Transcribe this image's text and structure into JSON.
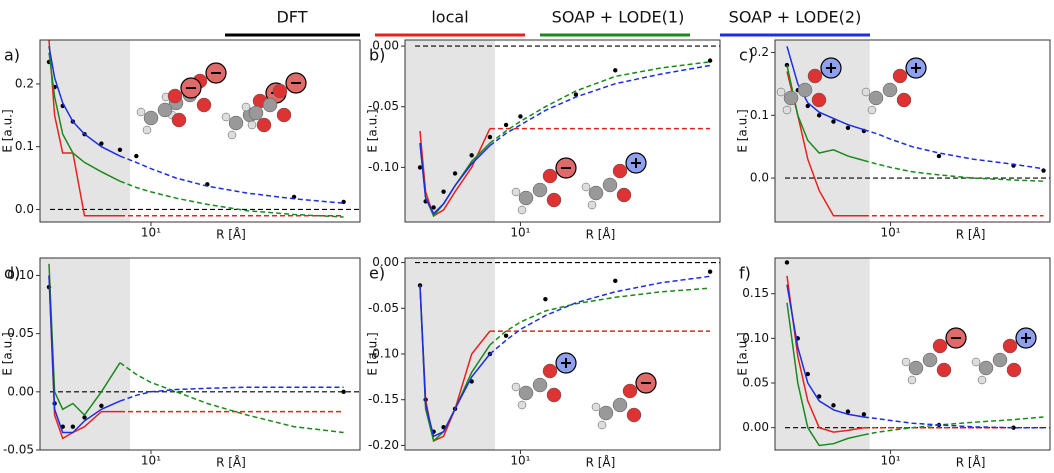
{
  "legend": [
    {
      "name": "DFT",
      "color": "#000000"
    },
    {
      "name": "local",
      "color": "#e8211c"
    },
    {
      "name": "SOAP + LODE(1)",
      "color": "#1a8a1a"
    },
    {
      "name": "SOAP + LODE(2)",
      "color": "#1c2ee0"
    }
  ],
  "chart_data": [
    {
      "type": "line",
      "label": "a)",
      "xlabel": "R [Å]",
      "ylabel": "E [a.u.]",
      "log_x": true,
      "xlim": [
        4.5,
        45
      ],
      "xticks": [
        {
          "value": 10,
          "label": "10¹"
        }
      ],
      "ylim": [
        -0.02,
        0.27
      ],
      "yticks": [
        {
          "value": 0,
          "label": "0.0"
        },
        0.1,
        0.2
      ],
      "shade": [
        4.5,
        8.6
      ],
      "reference_y": 0,
      "x": [
        4.8,
        5,
        5.3,
        5.7,
        6.2,
        7,
        8,
        9,
        10,
        12,
        15,
        20,
        28,
        40
      ],
      "series": [
        {
          "kind": "scatter",
          "color": "#000000",
          "values": [
            0.235,
            0.195,
            0.165,
            0.14,
            0.12,
            0.105,
            0.095,
            0.085,
            null,
            null,
            0.04,
            null,
            0.02,
            0.012
          ]
        },
        {
          "kind": "line",
          "color": "#e8211c",
          "values": [
            0.27,
            0.15,
            0.09,
            0.09,
            -0.01,
            -0.01,
            -0.01,
            -0.01,
            -0.01,
            -0.01,
            -0.01,
            -0.01,
            -0.01,
            -0.01
          ]
        },
        {
          "kind": "line",
          "color": "#1a8a1a",
          "values": [
            0.25,
            0.18,
            0.12,
            0.09,
            0.075,
            0.06,
            0.045,
            0.035,
            0.028,
            0.018,
            0.008,
            -0.002,
            -0.008,
            -0.012
          ]
        },
        {
          "kind": "line",
          "color": "#1c2ee0",
          "values": [
            0.26,
            0.21,
            0.17,
            0.14,
            0.12,
            0.1,
            0.085,
            0.075,
            0.065,
            0.05,
            0.037,
            0.026,
            0.017,
            0.01
          ]
        }
      ]
    },
    {
      "type": "line",
      "label": "b)",
      "xlabel": "R [Å]",
      "ylabel": "E [a.u.]",
      "log_x": true,
      "xlim": [
        4.3,
        43
      ],
      "xticks": [
        {
          "value": 10,
          "label": "10¹"
        }
      ],
      "ylim": [
        -0.145,
        0.005
      ],
      "yticks": [
        {
          "value": 0,
          "label": "0.00"
        },
        -0.05,
        {
          "value": -0.1,
          "label": "-0.10"
        }
      ],
      "shade": [
        4.3,
        8.3
      ],
      "reference_y": 0,
      "x": [
        4.8,
        5,
        5.3,
        5.7,
        6.2,
        7,
        8,
        9,
        10,
        12,
        15,
        20,
        28,
        40
      ],
      "series": [
        {
          "kind": "scatter",
          "color": "#000000",
          "values": [
            -0.1,
            -0.128,
            -0.133,
            -0.12,
            -0.105,
            -0.09,
            -0.075,
            -0.065,
            -0.058,
            null,
            -0.04,
            -0.02,
            null,
            -0.012
          ]
        },
        {
          "kind": "line",
          "color": "#e8211c",
          "values": [
            -0.07,
            -0.12,
            -0.14,
            -0.135,
            -0.12,
            -0.1,
            -0.068,
            -0.068,
            -0.068,
            -0.068,
            -0.068,
            -0.068,
            -0.068,
            -0.068
          ]
        },
        {
          "kind": "line",
          "color": "#1a8a1a",
          "values": [
            -0.08,
            -0.125,
            -0.14,
            -0.13,
            -0.115,
            -0.095,
            -0.08,
            -0.07,
            -0.062,
            -0.05,
            -0.037,
            -0.025,
            -0.018,
            -0.013
          ]
        },
        {
          "kind": "line",
          "color": "#1c2ee0",
          "values": [
            -0.08,
            -0.125,
            -0.138,
            -0.13,
            -0.115,
            -0.097,
            -0.082,
            -0.072,
            -0.065,
            -0.053,
            -0.042,
            -0.031,
            -0.023,
            -0.016
          ]
        }
      ]
    },
    {
      "type": "line",
      "label": "c)",
      "xlabel": "R [Å]",
      "ylabel": "E [a.u.]",
      "log_x": true,
      "xlim": [
        3.8,
        38
      ],
      "xticks": [
        {
          "value": 10,
          "label": "10¹"
        }
      ],
      "ylim": [
        -0.07,
        0.22
      ],
      "yticks": [
        {
          "value": 0,
          "label": "0.0"
        },
        0.1,
        0.2
      ],
      "shade": [
        3.8,
        8.4
      ],
      "reference_y": 0,
      "x": [
        4.2,
        4.6,
        5,
        5.5,
        6.2,
        7,
        8,
        9,
        10,
        12,
        15,
        20,
        28,
        36
      ],
      "series": [
        {
          "kind": "scatter",
          "color": "#000000",
          "values": [
            0.18,
            0.14,
            0.115,
            0.1,
            0.09,
            0.08,
            0.075,
            null,
            null,
            null,
            0.035,
            null,
            0.02,
            0.012
          ]
        },
        {
          "kind": "line",
          "color": "#e8211c",
          "values": [
            0.17,
            0.1,
            0.03,
            -0.02,
            -0.06,
            -0.06,
            -0.06,
            -0.06,
            -0.06,
            -0.06,
            -0.06,
            -0.06,
            -0.06,
            -0.06
          ]
        },
        {
          "kind": "line",
          "color": "#1a8a1a",
          "values": [
            0.18,
            0.1,
            0.06,
            0.04,
            0.045,
            0.035,
            0.028,
            0.022,
            0.017,
            0.01,
            0.005,
            0,
            -0.003,
            -0.005
          ]
        },
        {
          "kind": "line",
          "color": "#1c2ee0",
          "values": [
            0.21,
            0.15,
            0.12,
            0.105,
            0.095,
            0.085,
            0.077,
            0.07,
            0.062,
            0.05,
            0.04,
            0.03,
            0.022,
            0.015
          ]
        }
      ]
    },
    {
      "type": "line",
      "label": "d)",
      "xlabel": "R [Å]",
      "ylabel": "E [a.u.]",
      "log_x": true,
      "xlim": [
        4.5,
        45
      ],
      "xticks": [
        {
          "value": 10,
          "label": "10¹"
        }
      ],
      "ylim": [
        -0.05,
        0.115
      ],
      "yticks": [
        {
          "value": 0.1,
          "label": "0.10"
        },
        0.05,
        {
          "value": 0,
          "label": "0.00"
        },
        -0.05
      ],
      "shade": [
        4.5,
        8.6
      ],
      "reference_y": 0,
      "x": [
        4.8,
        5,
        5.3,
        5.7,
        6.2,
        7,
        8,
        9,
        10,
        12,
        15,
        20,
        28,
        40
      ],
      "series": [
        {
          "kind": "scatter",
          "color": "#000000",
          "values": [
            0.09,
            -0.01,
            -0.03,
            -0.03,
            -0.022,
            -0.012,
            null,
            null,
            null,
            null,
            null,
            null,
            null,
            0
          ]
        },
        {
          "kind": "line",
          "color": "#e8211c",
          "values": [
            0.1,
            -0.02,
            -0.04,
            -0.035,
            -0.03,
            -0.017,
            -0.017,
            -0.017,
            -0.017,
            -0.017,
            -0.017,
            -0.017,
            -0.017,
            -0.017
          ]
        },
        {
          "kind": "line",
          "color": "#1a8a1a",
          "values": [
            0.11,
            0,
            -0.015,
            -0.01,
            -0.02,
            0,
            0.025,
            0.015,
            0.008,
            0,
            -0.01,
            -0.02,
            -0.03,
            -0.035
          ]
        },
        {
          "kind": "line",
          "color": "#1c2ee0",
          "values": [
            0.1,
            -0.015,
            -0.035,
            -0.035,
            -0.025,
            -0.015,
            -0.008,
            -0.003,
            0,
            0.002,
            0.003,
            0.004,
            0.004,
            0.004
          ]
        }
      ]
    },
    {
      "type": "line",
      "label": "e)",
      "xlabel": "R [Å]",
      "ylabel": "E [a.u.]",
      "log_x": true,
      "xlim": [
        4.3,
        43
      ],
      "xticks": [
        {
          "value": 10,
          "label": "10¹"
        }
      ],
      "ylim": [
        -0.205,
        0.005
      ],
      "yticks": [
        {
          "value": 0,
          "label": "0.00"
        },
        -0.05,
        {
          "value": -0.1,
          "label": "-0.10"
        },
        -0.15,
        {
          "value": -0.2,
          "label": "-0.20"
        }
      ],
      "shade": [
        4.3,
        8.3
      ],
      "reference_y": 0,
      "x": [
        4.8,
        5,
        5.3,
        5.7,
        6.2,
        7,
        8,
        9,
        10,
        12,
        15,
        20,
        28,
        40
      ],
      "series": [
        {
          "kind": "scatter",
          "color": "#000000",
          "values": [
            -0.025,
            -0.15,
            -0.185,
            -0.18,
            -0.16,
            -0.13,
            -0.1,
            -0.08,
            null,
            -0.04,
            null,
            -0.02,
            null,
            -0.01
          ]
        },
        {
          "kind": "line",
          "color": "#e8211c",
          "values": [
            -0.025,
            -0.15,
            -0.195,
            -0.19,
            -0.16,
            -0.1,
            -0.075,
            -0.075,
            -0.075,
            -0.075,
            -0.075,
            -0.075,
            -0.075,
            -0.075
          ]
        },
        {
          "kind": "line",
          "color": "#1a8a1a",
          "values": [
            -0.025,
            -0.16,
            -0.195,
            -0.185,
            -0.16,
            -0.12,
            -0.09,
            -0.075,
            -0.065,
            -0.053,
            -0.045,
            -0.038,
            -0.032,
            -0.028
          ]
        },
        {
          "kind": "line",
          "color": "#1c2ee0",
          "values": [
            -0.025,
            -0.155,
            -0.19,
            -0.185,
            -0.16,
            -0.125,
            -0.1,
            -0.085,
            -0.073,
            -0.058,
            -0.044,
            -0.032,
            -0.022,
            -0.015
          ]
        }
      ]
    },
    {
      "type": "line",
      "label": "f)",
      "xlabel": "R [Å]",
      "ylabel": "E [a.u.]",
      "log_x": true,
      "xlim": [
        3.8,
        38
      ],
      "xticks": [
        {
          "value": 10,
          "label": "10¹"
        }
      ],
      "ylim": [
        -0.025,
        0.19
      ],
      "yticks": [
        0.15,
        {
          "value": 0.1,
          "label": "0.10"
        },
        0.05,
        {
          "value": 0,
          "label": "0.00"
        }
      ],
      "shade": [
        3.8,
        8.4
      ],
      "reference_y": 0,
      "x": [
        4.2,
        4.6,
        5,
        5.5,
        6.2,
        7,
        8,
        9,
        10,
        12,
        15,
        20,
        28,
        36
      ],
      "series": [
        {
          "kind": "scatter",
          "color": "#000000",
          "values": [
            0.185,
            0.1,
            0.06,
            0.035,
            0.025,
            0.018,
            0.015,
            null,
            null,
            null,
            0.003,
            null,
            0,
            null
          ]
        },
        {
          "kind": "line",
          "color": "#e8211c",
          "values": [
            0.17,
            0.08,
            0.03,
            0,
            -0.005,
            -0.003,
            0,
            0,
            0,
            0,
            0,
            0,
            0,
            0
          ]
        },
        {
          "kind": "line",
          "color": "#1a8a1a",
          "values": [
            0.14,
            0.05,
            0,
            -0.02,
            -0.018,
            -0.012,
            -0.008,
            -0.005,
            -0.003,
            0,
            0.003,
            0.006,
            0.009,
            0.012
          ]
        },
        {
          "kind": "line",
          "color": "#1c2ee0",
          "values": [
            0.16,
            0.09,
            0.05,
            0.03,
            0.02,
            0.015,
            0.012,
            0.01,
            0.008,
            0.005,
            0.003,
            0.001,
            0,
            0
          ]
        }
      ]
    }
  ]
}
